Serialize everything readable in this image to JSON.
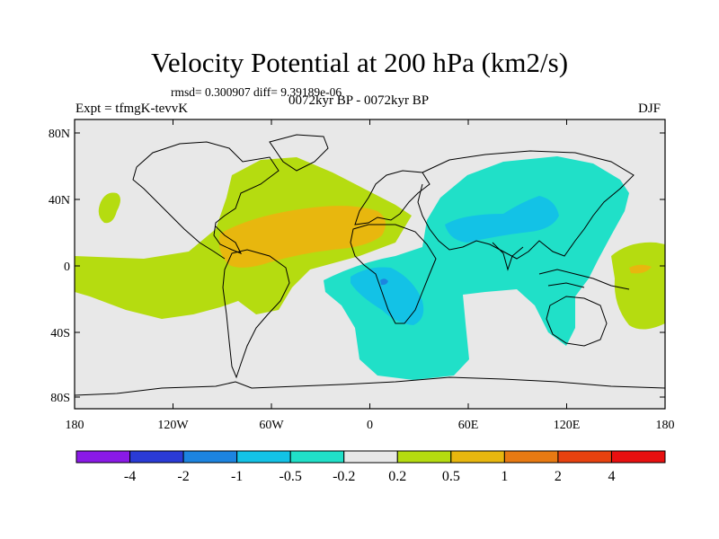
{
  "header": {
    "title": "Velocity Potential at 200 hPa (km2/s)",
    "stats": "rmsd= 0.300907 diff= 9.39189e-06",
    "experiment": "Expt = tfmgK-tevvK",
    "period": "0072kyr BP - 0072kyr BP",
    "season": "DJF"
  },
  "axes": {
    "lat_labels": [
      "80N",
      "40N",
      "0",
      "40S",
      "80S"
    ],
    "lon_labels": [
      "180",
      "120W",
      "60W",
      "0",
      "60E",
      "120E",
      "180"
    ]
  },
  "colorbar": {
    "labels": [
      "-4",
      "-2",
      "-1",
      "-0.5",
      "-0.2",
      "0.2",
      "0.5",
      "1",
      "2",
      "4"
    ],
    "colors": [
      "#8a1ae6",
      "#2a3bd6",
      "#1c84e0",
      "#13c2e6",
      "#20e0c8",
      "#e8e8e8",
      "#b5dc10",
      "#e8b70e",
      "#e87a12",
      "#e8420f",
      "#e81010"
    ]
  },
  "map_colors": {
    "ocean_neutral": "#e8e8e8",
    "neg_weak": "#20e0c8",
    "neg_mid": "#13c2e6",
    "neg_strong": "#1c84e0",
    "pos_weak": "#b5dc10",
    "pos_mid": "#e8b70e",
    "pos_strong": "#e87a12"
  }
}
